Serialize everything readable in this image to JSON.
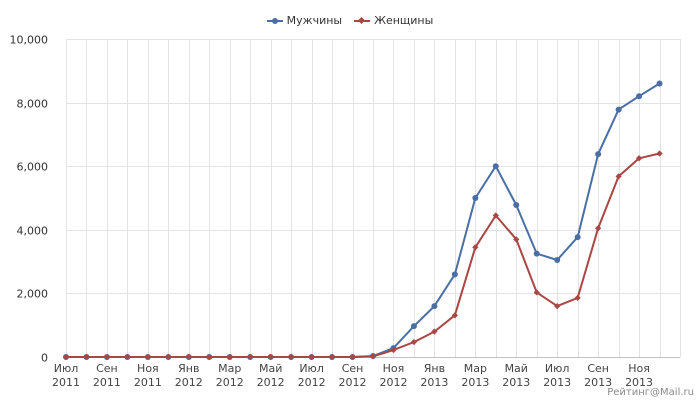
{
  "chart_data": {
    "type": "line",
    "title": "",
    "xlabel": "",
    "ylabel": "",
    "ylim": [
      0,
      10000
    ],
    "yticks": [
      0,
      2000,
      4000,
      6000,
      8000,
      10000
    ],
    "ytick_labels": [
      "0",
      "2,000",
      "4,000",
      "6,000",
      "8,000",
      "10,000"
    ],
    "grid": true,
    "legend_position": "top-center",
    "x": [
      "2011-07",
      "2011-08",
      "2011-09",
      "2011-10",
      "2011-11",
      "2011-12",
      "2012-01",
      "2012-02",
      "2012-03",
      "2012-04",
      "2012-05",
      "2012-06",
      "2012-07",
      "2012-08",
      "2012-09",
      "2012-10",
      "2012-11",
      "2012-12",
      "2013-01",
      "2013-02",
      "2013-03",
      "2013-04",
      "2013-05",
      "2013-06",
      "2013-07",
      "2013-08",
      "2013-09",
      "2013-10",
      "2013-11",
      "2013-12"
    ],
    "x_tick_labels": [
      {
        "month": "Июл",
        "year": "2011"
      },
      {
        "month": "Сен",
        "year": "2011"
      },
      {
        "month": "Ноя",
        "year": "2011"
      },
      {
        "month": "Янв",
        "year": "2012"
      },
      {
        "month": "Мар",
        "year": "2012"
      },
      {
        "month": "Май",
        "year": "2012"
      },
      {
        "month": "Июл",
        "year": "2012"
      },
      {
        "month": "Сен",
        "year": "2012"
      },
      {
        "month": "Ноя",
        "year": "2012"
      },
      {
        "month": "Янв",
        "year": "2013"
      },
      {
        "month": "Мар",
        "year": "2013"
      },
      {
        "month": "Май",
        "year": "2013"
      },
      {
        "month": "Июл",
        "year": "2013"
      },
      {
        "month": "Сен",
        "year": "2013"
      },
      {
        "month": "Ноя",
        "year": "2013"
      }
    ],
    "series": [
      {
        "name": "Мужчины",
        "color": "#4a6fa5",
        "marker": "circle",
        "values": [
          0,
          0,
          0,
          0,
          0,
          0,
          0,
          0,
          0,
          0,
          0,
          0,
          0,
          0,
          0,
          30,
          280,
          970,
          1600,
          2600,
          5000,
          6000,
          4780,
          3250,
          3050,
          3770,
          6380,
          7780,
          8200,
          8600
        ]
      },
      {
        "name": "Женщины",
        "color": "#aa4643",
        "marker": "diamond",
        "values": [
          0,
          0,
          0,
          0,
          0,
          0,
          0,
          0,
          0,
          0,
          0,
          0,
          0,
          0,
          0,
          20,
          220,
          470,
          800,
          1310,
          3450,
          4450,
          3700,
          2030,
          1600,
          1860,
          4050,
          5680,
          6250,
          6400
        ]
      }
    ]
  },
  "watermark": "Рейтинг@Mail.ru"
}
